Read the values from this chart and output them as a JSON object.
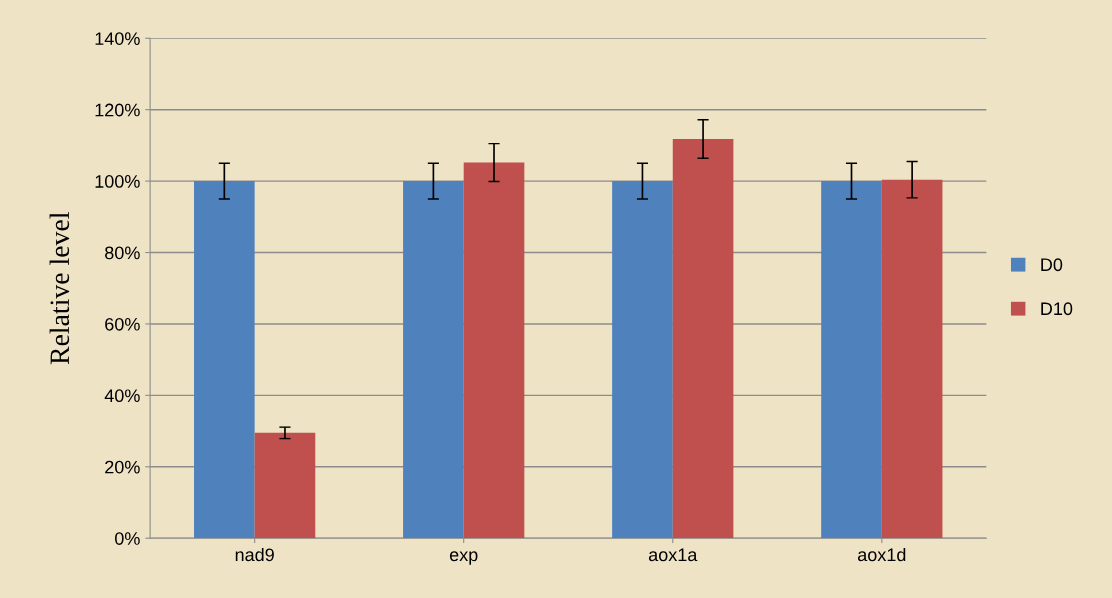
{
  "chart_data": {
    "type": "bar",
    "ylabel": "Relative level",
    "categories": [
      "nad9",
      "exp",
      "aox1a",
      "aox1d"
    ],
    "series": [
      {
        "name": "D0",
        "color": "#4f81bd",
        "values": [
          100,
          100,
          100,
          100
        ],
        "errors": [
          5,
          5,
          5,
          5
        ]
      },
      {
        "name": "D10",
        "color": "#c0504d",
        "values": [
          29.5,
          105.2,
          111.8,
          100.4
        ],
        "errors": [
          1.6,
          5.3,
          5.4,
          5.1
        ]
      }
    ],
    "ylim": [
      0,
      140
    ],
    "yticks": [
      {
        "value": 0,
        "label": "0%"
      },
      {
        "value": 20,
        "label": "20%"
      },
      {
        "value": 40,
        "label": "40%"
      },
      {
        "value": 60,
        "label": "60%"
      },
      {
        "value": 80,
        "label": "80%"
      },
      {
        "value": 100,
        "label": "100%"
      },
      {
        "value": 120,
        "label": "120%"
      },
      {
        "value": 140,
        "label": "140%"
      }
    ],
    "grid": "y",
    "legend": "right"
  }
}
